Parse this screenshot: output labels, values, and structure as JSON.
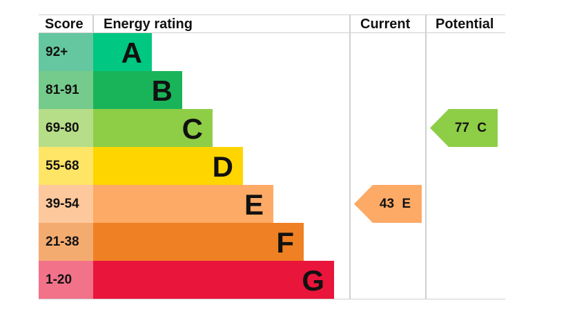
{
  "chart_data": {
    "type": "table",
    "headers": {
      "score": "Score",
      "rating": "Energy rating",
      "current": "Current",
      "potential": "Potential"
    },
    "bands": [
      {
        "score": "92+",
        "letter": "A",
        "color": "#00c781",
        "score_color": "#64c7a0"
      },
      {
        "score": "81-91",
        "letter": "B",
        "color": "#19b459",
        "score_color": "#75cb8b"
      },
      {
        "score": "69-80",
        "letter": "C",
        "color": "#8dce46",
        "score_color": "#b6dd88"
      },
      {
        "score": "55-68",
        "letter": "D",
        "color": "#ffd500",
        "score_color": "#ffe566"
      },
      {
        "score": "39-54",
        "letter": "E",
        "color": "#fcaa65",
        "score_color": "#fdc89c"
      },
      {
        "score": "21-38",
        "letter": "F",
        "color": "#ef8023",
        "score_color": "#f4ab70"
      },
      {
        "score": "1-20",
        "letter": "G",
        "color": "#e9153b",
        "score_color": "#f2728a"
      }
    ],
    "current": {
      "value": 43,
      "letter": "E",
      "label": "43 E"
    },
    "potential": {
      "value": 77,
      "letter": "C",
      "label": "77 C"
    }
  }
}
